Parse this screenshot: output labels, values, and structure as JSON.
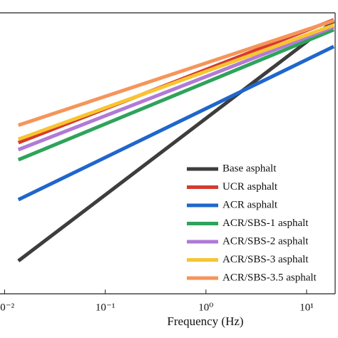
{
  "chart_data": {
    "type": "line",
    "x_label": "Frequency (Hz)",
    "x_scale": "log",
    "xlim": [
      0.009,
      20.5
    ],
    "xticks": [
      {
        "value": 0.01,
        "label": "10⁻²"
      },
      {
        "value": 0.1,
        "label": "10⁻¹"
      },
      {
        "value": 1,
        "label": "10⁰"
      },
      {
        "value": 10,
        "label": "10¹"
      }
    ],
    "ylim": [
      0,
      100
    ],
    "x": [
      0.0137,
      18.6
    ],
    "legend": "lower right",
    "series": [
      {
        "name": "Base asphalt",
        "color": "#3d3d3d",
        "values": [
          11.7,
          97
        ]
      },
      {
        "name": "UCR asphalt",
        "color": "#d63a2f",
        "values": [
          53.8,
          97.5
        ]
      },
      {
        "name": "ACR asphalt",
        "color": "#1f66cc",
        "values": [
          33.5,
          88
        ]
      },
      {
        "name": "ACR/SBS-1 asphalt",
        "color": "#2ea35a",
        "values": [
          47.7,
          94
        ]
      },
      {
        "name": "ACR/SBS-2 asphalt",
        "color": "#b07ad6",
        "values": [
          51.3,
          95
        ]
      },
      {
        "name": "ACR/SBS-3 asphalt",
        "color": "#f7c531",
        "values": [
          55,
          95.6
        ]
      },
      {
        "name": "ACR/SBS-3.5 asphalt",
        "color": "#f5955a",
        "values": [
          60,
          97.2
        ]
      }
    ]
  }
}
